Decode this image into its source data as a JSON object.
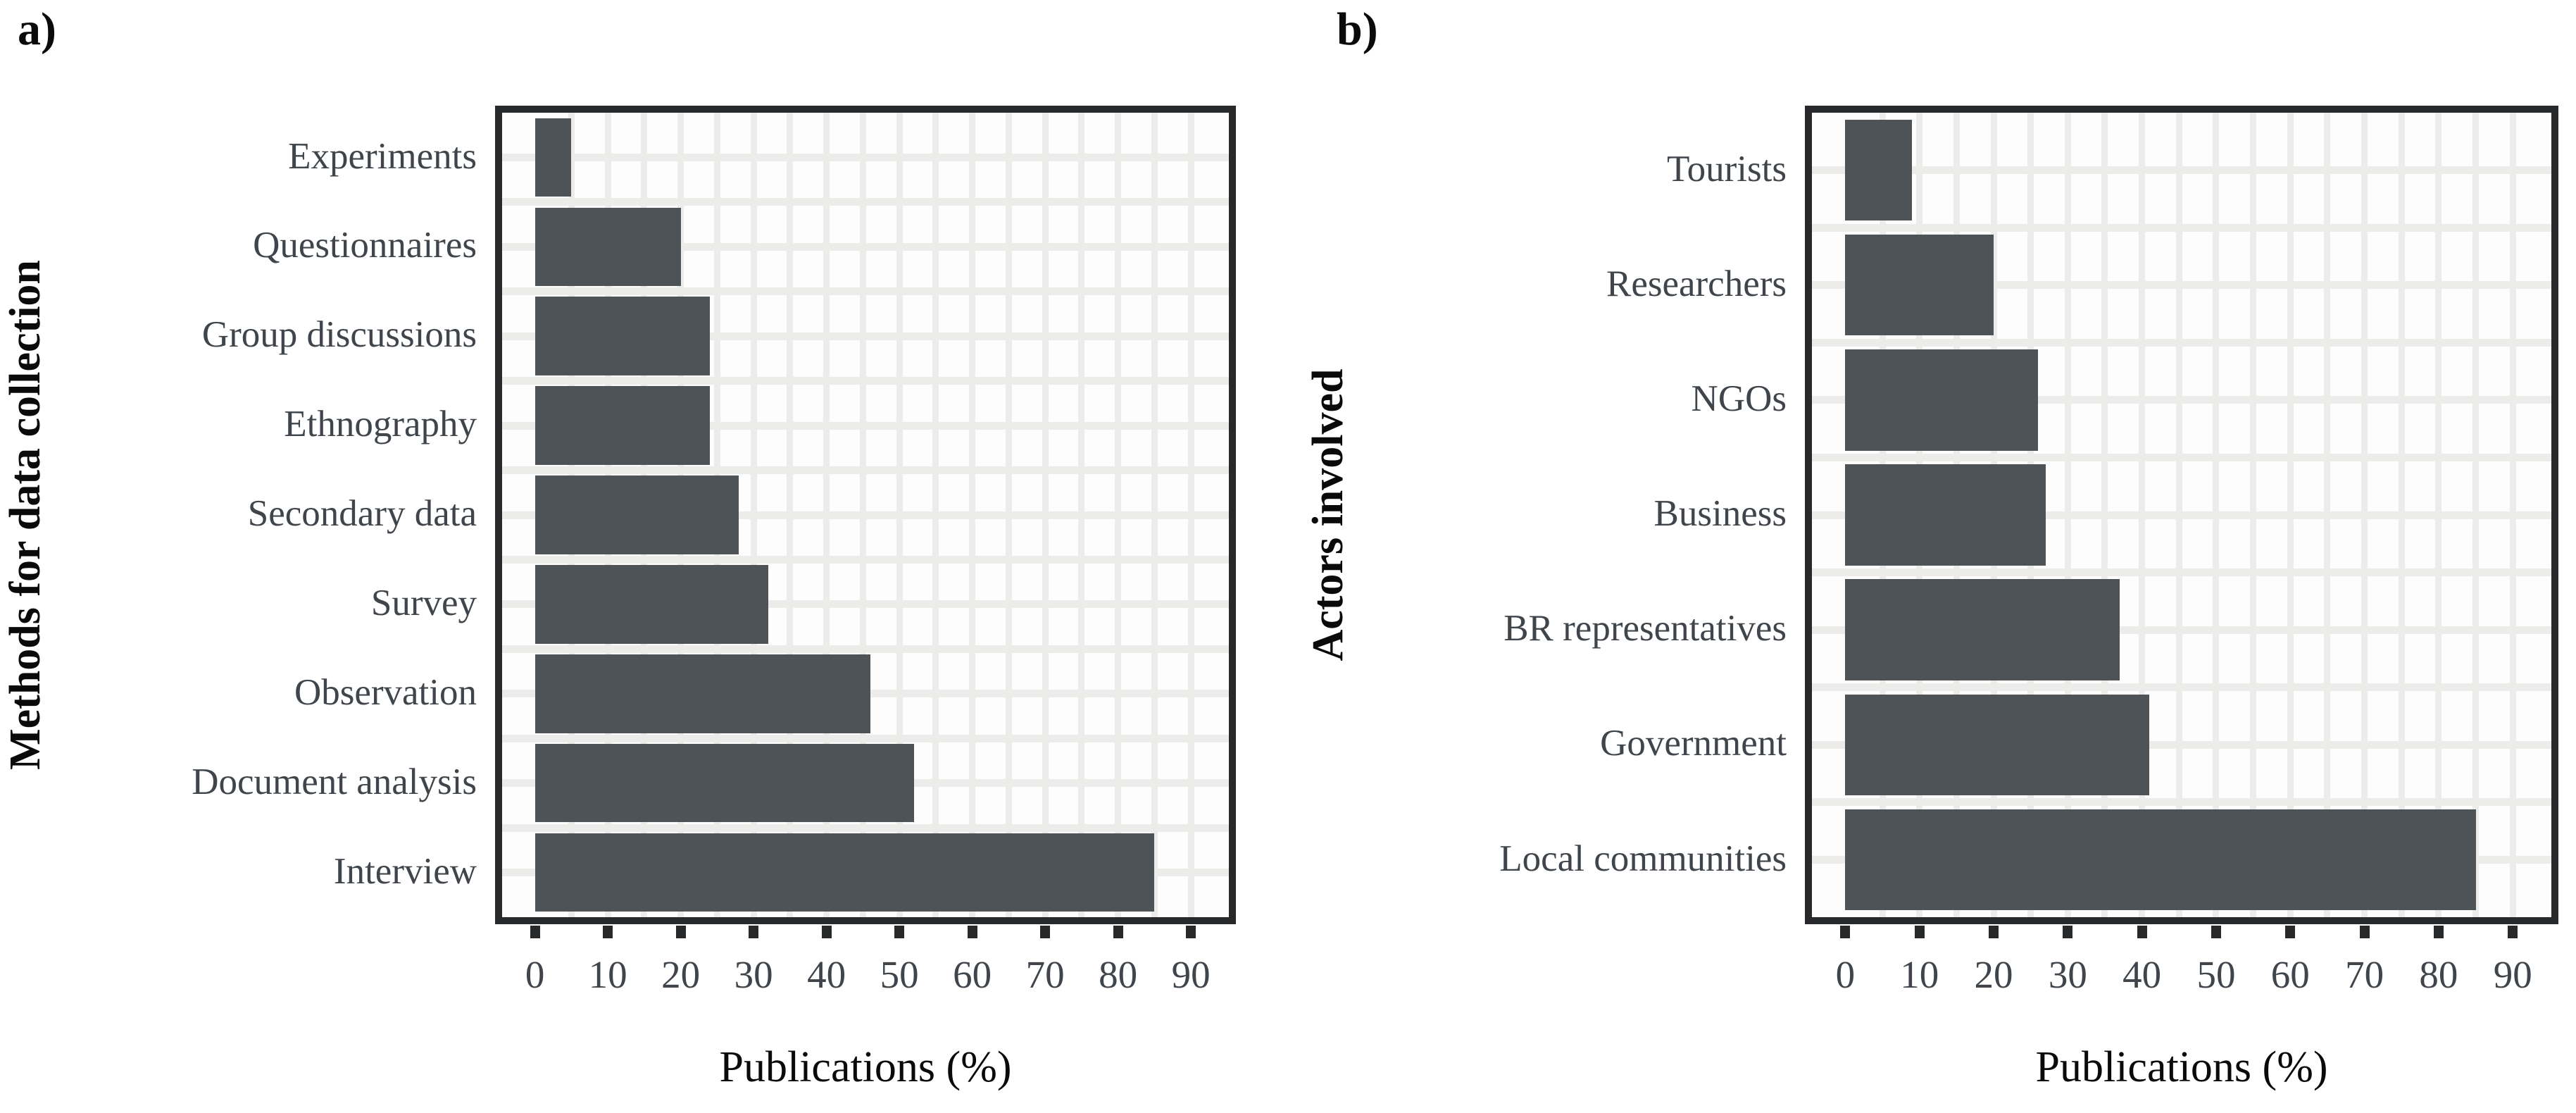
{
  "figure_title": "",
  "colors": {
    "bar_fill": "#4e5357",
    "panel_border": "#28292b",
    "gridline": "#ececea",
    "tick_text": "#3f454a",
    "category_text": "#3f454a",
    "axis_title_text": "#0a0a0b",
    "panel_background": "#fdfdfd",
    "page_background": "#ffffff"
  },
  "chart_data": [
    {
      "type": "bar",
      "orientation": "horizontal",
      "panel_label": "a)",
      "title": "",
      "ylabel": "Methods for data collection",
      "xlabel": "Publications (%)",
      "categories": [
        "Experiments",
        "Questionnaires",
        "Group discussions",
        "Ethnography",
        "Secondary data",
        "Survey",
        "Observation",
        "Document analysis",
        "Interview"
      ],
      "values": [
        5,
        20,
        24,
        24,
        28,
        32,
        46,
        52,
        85
      ],
      "x_ticks": [
        0,
        10,
        20,
        30,
        40,
        50,
        60,
        70,
        80,
        90
      ],
      "xlim": [
        -4.5,
        95.2
      ],
      "grid": true,
      "grid_interval": 5,
      "legend": "none"
    },
    {
      "type": "bar",
      "orientation": "horizontal",
      "panel_label": "b)",
      "title": "",
      "ylabel": "Actors involved",
      "xlabel": "Publications (%)",
      "categories": [
        "Tourists",
        "Researchers",
        "NGOs",
        "Business",
        "BR representatives",
        "Government",
        "Local communities"
      ],
      "values": [
        9,
        20,
        26,
        27,
        37,
        41,
        85
      ],
      "x_ticks": [
        0,
        10,
        20,
        30,
        40,
        50,
        60,
        70,
        80,
        90
      ],
      "xlim": [
        -4.5,
        95.2
      ],
      "grid": true,
      "grid_interval": 5,
      "legend": "none"
    }
  ]
}
